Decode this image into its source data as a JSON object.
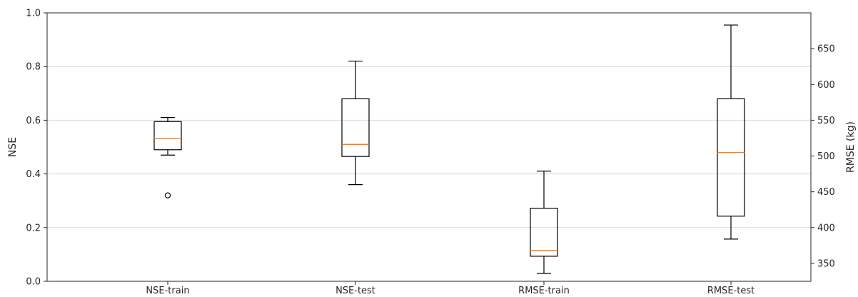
{
  "chart_data": {
    "type": "box",
    "categories": [
      "NSE-train",
      "NSE-test",
      "RMSE-train",
      "RMSE-test"
    ],
    "ylabel_left": "NSE",
    "ylabel_right": "RMSE (kg)",
    "y_left": {
      "range": [
        0.0,
        1.0
      ],
      "ticks": [
        "0.0",
        "0.2",
        "0.4",
        "0.6",
        "0.8",
        "1.0"
      ],
      "tick_values": [
        0.0,
        0.2,
        0.4,
        0.6,
        0.8,
        1.0
      ]
    },
    "y_right": {
      "range": [
        325,
        700
      ],
      "ticks": [
        "350",
        "400",
        "450",
        "500",
        "550",
        "600",
        "650"
      ],
      "tick_values": [
        350,
        400,
        450,
        500,
        550,
        600,
        650
      ]
    },
    "grid": true,
    "grid_axis": "left",
    "boxes": [
      {
        "name": "NSE-train",
        "axis": "left",
        "whisker_low": 0.47,
        "q1": 0.49,
        "median": 0.532,
        "q3": 0.595,
        "whisker_high": 0.61,
        "fliers": [
          0.32
        ]
      },
      {
        "name": "NSE-test",
        "axis": "left",
        "whisker_low": 0.36,
        "q1": 0.465,
        "median": 0.51,
        "q3": 0.68,
        "whisker_high": 0.82,
        "fliers": []
      },
      {
        "name": "RMSE-train",
        "axis": "right",
        "whisker_low": 336,
        "q1": 360,
        "median": 368,
        "q3": 427,
        "whisker_high": 479,
        "fliers": []
      },
      {
        "name": "RMSE-test",
        "axis": "right",
        "whisker_low": 384,
        "q1": 416,
        "median": 505,
        "q3": 580,
        "whisker_high": 683,
        "fliers": []
      }
    ],
    "colors": {
      "box": "#000000",
      "median": "#ff7f0e",
      "grid": "#d9d9d9"
    }
  }
}
